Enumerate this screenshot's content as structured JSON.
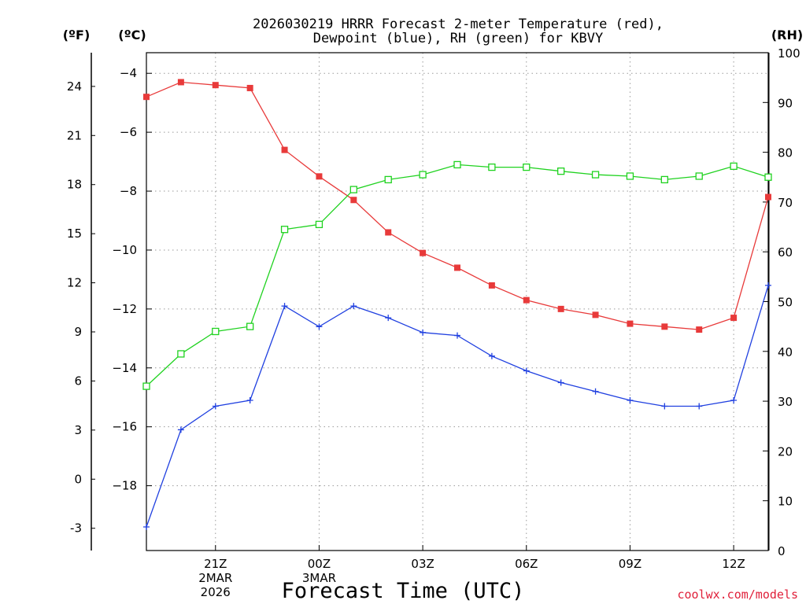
{
  "title": {
    "line1": "2026030219 HRRR Forecast 2-meter Temperature (red),",
    "line2": "Dewpoint (blue), RH (green) for KBVY"
  },
  "units": {
    "fahrenheit": "(ºF)",
    "celsius": "(ºC)",
    "rh": "(RH)"
  },
  "credit": "coolwx.com/models",
  "colors": {
    "temperature": "#e83a3a",
    "dewpoint": "#2040e0",
    "rh": "#1fd21f",
    "credit": "#e0203a"
  },
  "chart_data": {
    "type": "line",
    "title": "2026030219 HRRR Forecast 2-meter Temperature (red), Dewpoint (blue), RH (green) for KBVY",
    "xlabel": "Forecast Time (UTC)",
    "x": [
      0,
      1,
      2,
      3,
      4,
      5,
      6,
      7,
      8,
      9,
      10,
      11,
      12,
      13,
      14,
      15,
      16,
      17,
      18
    ],
    "xlim": [
      0,
      18
    ],
    "x_ticks": [
      {
        "x": 2,
        "lines": [
          "21Z",
          "2MAR",
          "2026"
        ]
      },
      {
        "x": 5,
        "lines": [
          "00Z",
          "3MAR"
        ]
      },
      {
        "x": 8,
        "lines": [
          "03Z"
        ]
      },
      {
        "x": 11,
        "lines": [
          "06Z"
        ]
      },
      {
        "x": 14,
        "lines": [
          "09Z"
        ]
      },
      {
        "x": 17,
        "lines": [
          "12Z"
        ]
      }
    ],
    "left_axis_c": {
      "label": "(ºC)",
      "ylim": [
        -20.2,
        -3.3
      ],
      "ticks": [
        -4,
        -6,
        -8,
        -10,
        -12,
        -14,
        -16,
        -18
      ]
    },
    "left_axis_f": {
      "label": "(ºF)",
      "ylim": [
        -4.36,
        26.06
      ],
      "ticks": [
        24,
        21,
        18,
        15,
        12,
        9,
        6,
        3,
        0,
        -3
      ]
    },
    "right_axis": {
      "label": "(RH)",
      "ylim": [
        0,
        100
      ],
      "ticks": [
        100,
        90,
        80,
        70,
        60,
        50,
        40,
        30,
        20,
        10,
        0
      ]
    },
    "series": [
      {
        "name": "Temperature",
        "axis": "c",
        "color": "#e83a3a",
        "marker": "filled-square",
        "values": [
          -4.8,
          -4.3,
          -4.4,
          -4.5,
          -6.6,
          -7.5,
          -8.3,
          -9.4,
          -10.1,
          -10.6,
          -11.2,
          -11.7,
          -12.0,
          -12.2,
          -12.5,
          -12.6,
          -12.7,
          -12.3,
          -8.2
        ]
      },
      {
        "name": "Dewpoint",
        "axis": "c",
        "color": "#2040e0",
        "marker": "plus",
        "values": [
          -19.4,
          -16.1,
          -15.3,
          -15.1,
          -11.9,
          -12.6,
          -11.9,
          -12.3,
          -12.8,
          -12.9,
          -13.6,
          -14.1,
          -14.5,
          -14.8,
          -15.1,
          -15.3,
          -15.3,
          -15.1,
          -11.2
        ]
      },
      {
        "name": "RH",
        "axis": "rh",
        "color": "#1fd21f",
        "marker": "open-square",
        "values": [
          33,
          39.5,
          44,
          45,
          64.5,
          65.5,
          72.5,
          74.5,
          75.5,
          77.5,
          77,
          77,
          76.2,
          75.5,
          75.2,
          74.5,
          75.2,
          77.2,
          75
        ]
      }
    ]
  }
}
